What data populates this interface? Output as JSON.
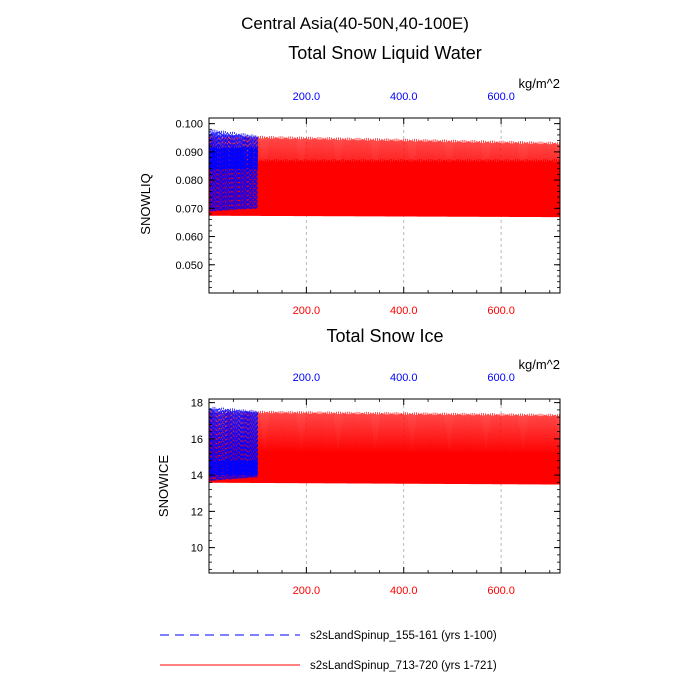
{
  "figure": {
    "main_title": "Central Asia(40-50N,40-100E)",
    "colors": {
      "series_a": "#0000ff",
      "series_b": "#ff0000",
      "overlap": "#5000c0",
      "grid": "#a8a8a8",
      "frame": "#000000"
    }
  },
  "legend": {
    "items": [
      {
        "label": "s2sLandSpinup_155-161 (yrs 1-100)",
        "color": "#0000ff",
        "style": "dashed"
      },
      {
        "label": "s2sLandSpinup_713-720 (yrs 1-721)",
        "color": "#ff0000",
        "style": "solid"
      }
    ]
  },
  "chart_data": [
    {
      "type": "line",
      "title": "Total Snow Liquid Water",
      "ylabel": "SNOWLIQ",
      "units": "kg/m^2",
      "xlim": [
        0,
        721
      ],
      "ylim": [
        0.04,
        0.102
      ],
      "yticks": [
        0.05,
        0.06,
        0.07,
        0.08,
        0.09,
        0.1
      ],
      "ytick_labels": [
        "0.050",
        "0.060",
        "0.070",
        "0.080",
        "0.090",
        "0.100"
      ],
      "xticks": [
        200,
        400,
        600
      ],
      "xtick_labels_top": [
        "200.0",
        "400.0",
        "600.0"
      ],
      "xtick_labels_bottom": [
        "200.0",
        "400.0",
        "600.0"
      ],
      "grid_x": true,
      "series": [
        {
          "name": "s2sLandSpinup_155-161 (yrs 1-100)",
          "x_range": [
            1,
            100
          ],
          "cycle_max": [
            0.0975,
            0.0955
          ],
          "cycle_min": [
            0.069,
            0.07
          ],
          "inner_max": 0.0915,
          "inner_min": 0.084
        },
        {
          "name": "s2sLandSpinup_713-720 (yrs 1-721)",
          "x_range": [
            1,
            721
          ],
          "cycle_max": [
            0.0955,
            0.093
          ],
          "cycle_min": [
            0.0675,
            0.067
          ],
          "inner_max": 0.0868,
          "inner_min": 0.0728
        }
      ]
    },
    {
      "type": "line",
      "title": "Total Snow Ice",
      "ylabel": "SNOWICE",
      "units": "kg/m^2",
      "xlim": [
        0,
        721
      ],
      "ylim": [
        8.6,
        18.2
      ],
      "yticks": [
        10,
        12,
        14,
        16,
        18
      ],
      "ytick_labels": [
        "10",
        "12",
        "14",
        "16",
        "18"
      ],
      "xticks": [
        200,
        400,
        600
      ],
      "xtick_labels_top": [
        "200.0",
        "400.0",
        "600.0"
      ],
      "xtick_labels_bottom": [
        "200.0",
        "400.0",
        "600.0"
      ],
      "grid_x": true,
      "series": [
        {
          "name": "s2sLandSpinup_155-161 (yrs 1-100)",
          "x_range": [
            1,
            100
          ],
          "cycle_max": [
            17.7,
            17.5
          ],
          "cycle_min": [
            13.7,
            13.9
          ],
          "inner_max": 14.8,
          "inner_min": 14.0
        },
        {
          "name": "s2sLandSpinup_713-720 (yrs 1-721)",
          "x_range": [
            1,
            721
          ],
          "cycle_max": [
            17.5,
            17.3
          ],
          "cycle_min": [
            13.6,
            13.5
          ],
          "inner_max": 14.4,
          "inner_min": 13.9
        }
      ]
    }
  ]
}
